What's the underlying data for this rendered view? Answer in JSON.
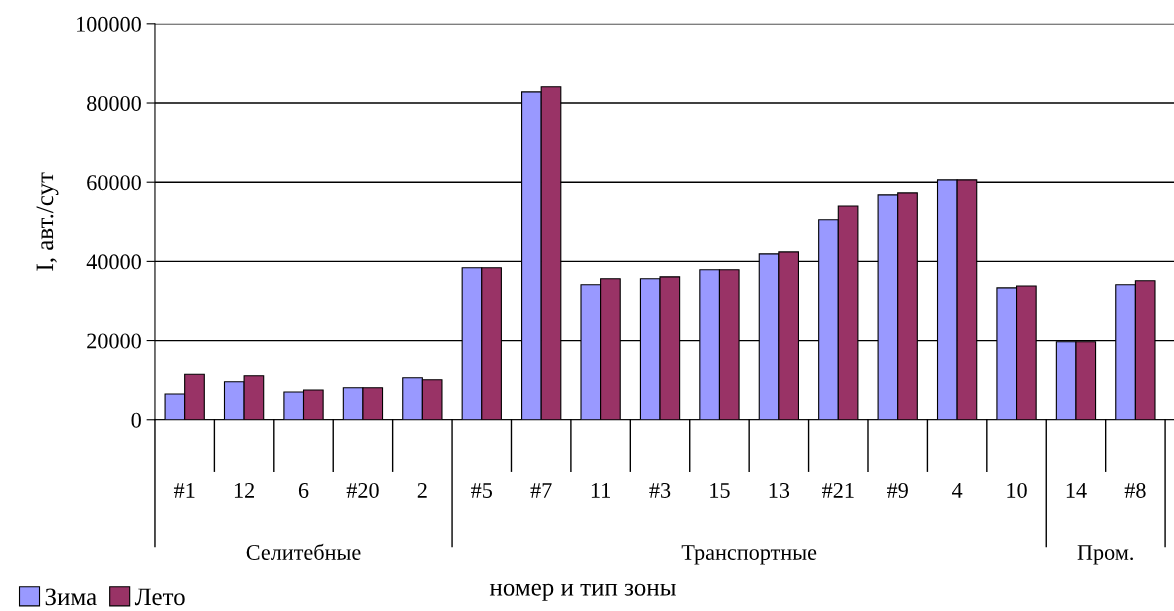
{
  "chart_data": {
    "type": "bar",
    "xlabel": "номер и тип зоны",
    "ylabel": "I, авт./сут",
    "categories": [
      "#1",
      "12",
      "6",
      "#20",
      "2",
      "#5",
      "#7",
      "11",
      "#3",
      "15",
      "13",
      "#21",
      "#9",
      "4",
      "10",
      "14",
      "#8"
    ],
    "series": [
      {
        "name": "Зима",
        "color": "#9999ff",
        "values": [
          6500,
          9600,
          7000,
          8100,
          10600,
          38400,
          82800,
          34100,
          35600,
          37900,
          41900,
          50500,
          56800,
          60600,
          33300,
          19700,
          34100
        ]
      },
      {
        "name": "Лето",
        "color": "#993366",
        "values": [
          11500,
          11100,
          7500,
          8100,
          10100,
          38400,
          84100,
          35600,
          36100,
          37900,
          42400,
          54000,
          57300,
          60600,
          33800,
          19700,
          35100
        ]
      }
    ],
    "annotations": [
      "Селитебные",
      "Транспортные",
      "Пром."
    ],
    "ylim": [
      0,
      100000
    ],
    "yticks": [
      0,
      20000,
      40000,
      60000,
      80000,
      100000
    ],
    "grid": "y",
    "legend": "bottom left"
  }
}
